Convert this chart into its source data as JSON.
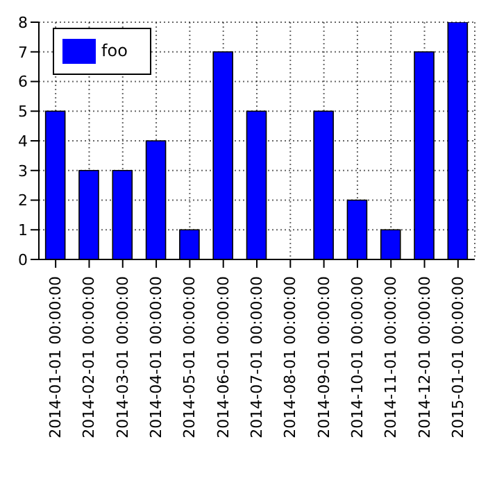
{
  "chart_data": {
    "type": "bar",
    "categories": [
      "2014-01-01 00:00:00",
      "2014-02-01 00:00:00",
      "2014-03-01 00:00:00",
      "2014-04-01 00:00:00",
      "2014-05-01 00:00:00",
      "2014-06-01 00:00:00",
      "2014-07-01 00:00:00",
      "2014-08-01 00:00:00",
      "2014-09-01 00:00:00",
      "2014-10-01 00:00:00",
      "2014-11-01 00:00:00",
      "2014-12-01 00:00:00",
      "2015-01-01 00:00:00"
    ],
    "series": [
      {
        "name": "foo",
        "color": "#0000ff",
        "values": [
          5,
          3,
          3,
          4,
          1,
          7,
          5,
          0,
          5,
          2,
          1,
          7,
          8
        ]
      }
    ],
    "ylim": [
      0,
      8
    ],
    "yticks": [
      0,
      1,
      2,
      3,
      4,
      5,
      6,
      7,
      8
    ],
    "grid": true,
    "legend": "top left"
  }
}
